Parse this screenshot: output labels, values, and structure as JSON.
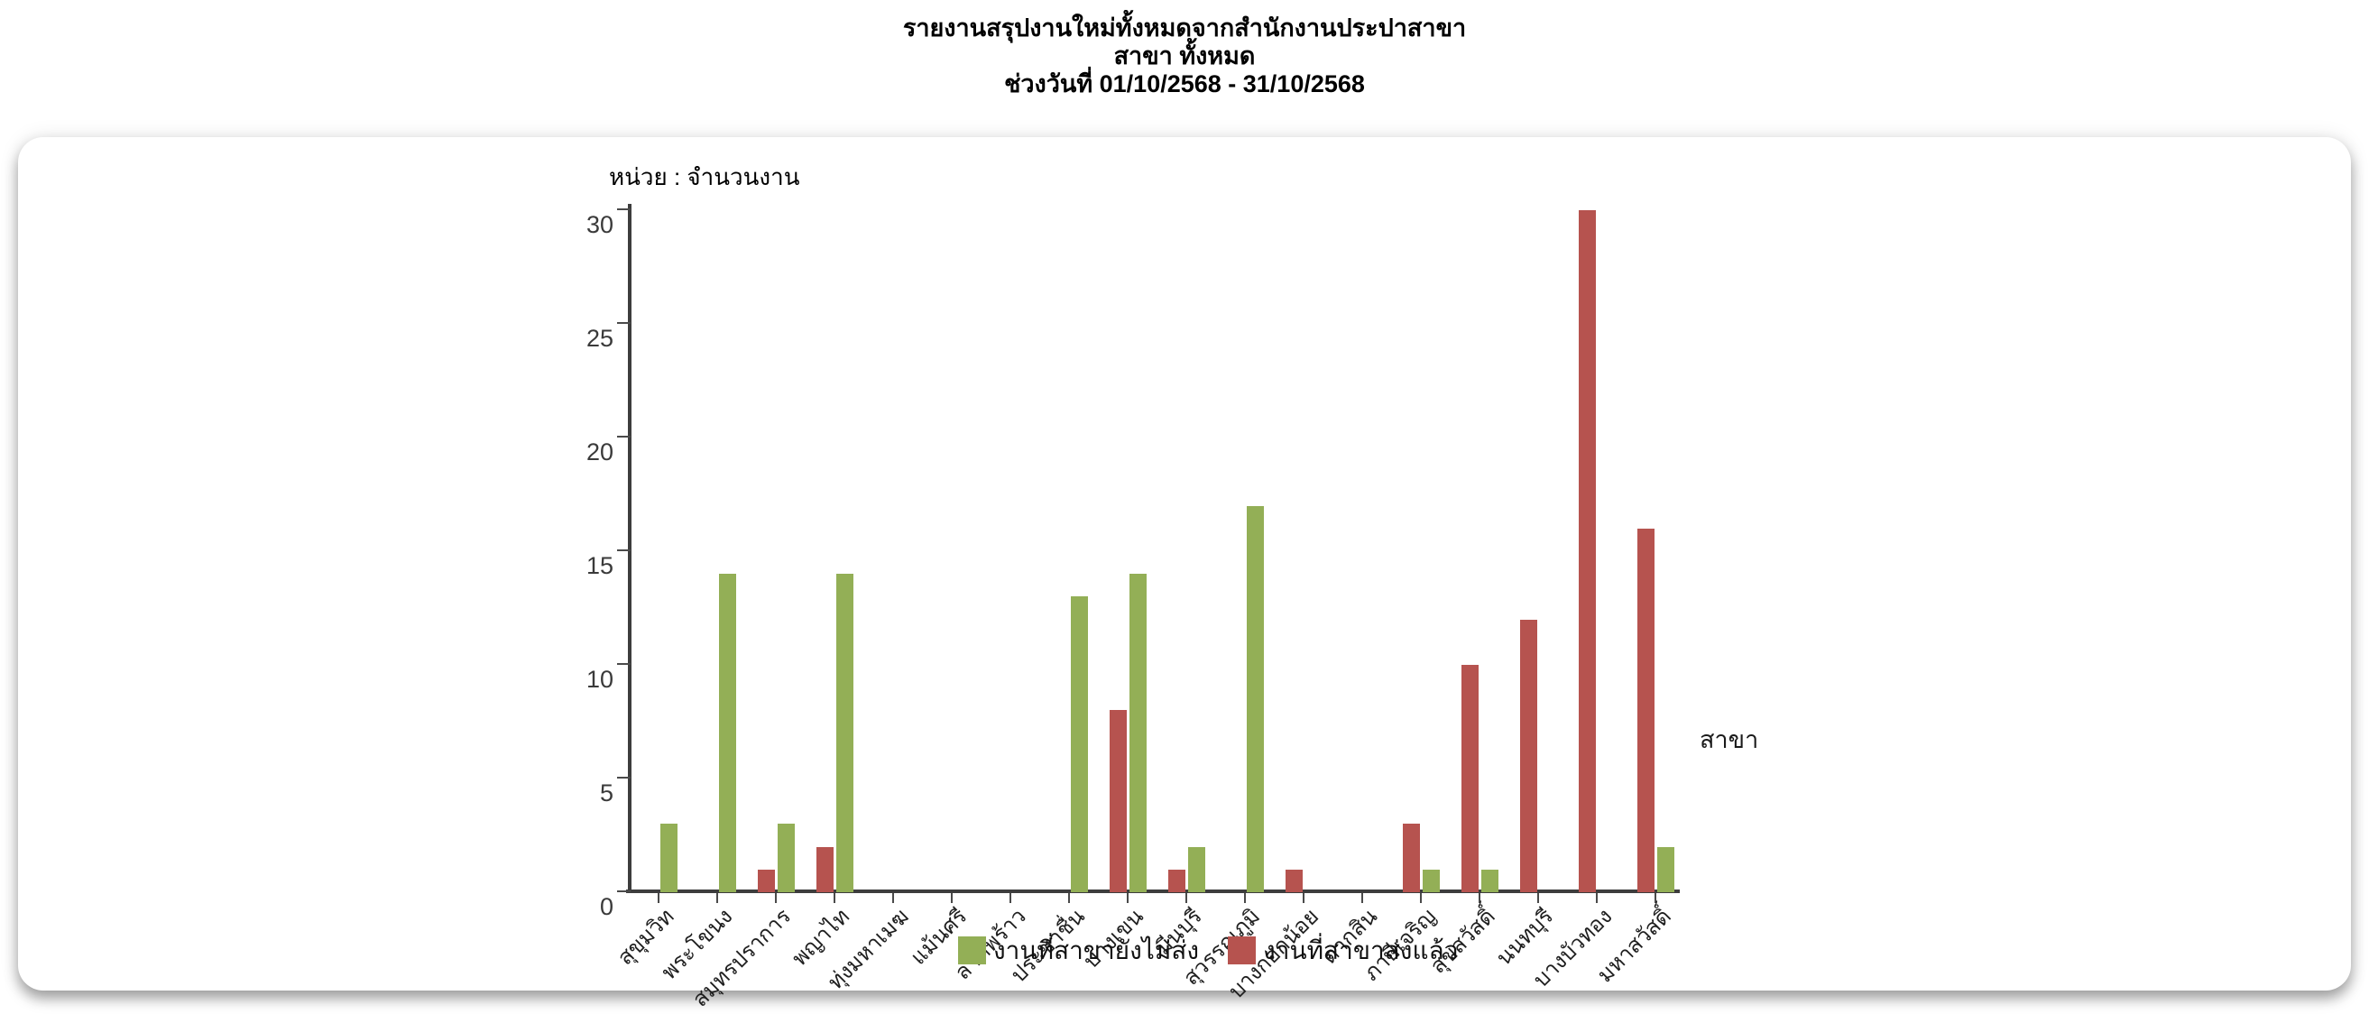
{
  "header": {
    "title_line1": "รายงานสรุปงานใหม่ทั้งหมดจากสำนักงานประปาสาขา",
    "title_line2": "สาขา ทั้งหมด",
    "title_line3": "ช่วงวันที่ 01/10/2568 - 31/10/2568"
  },
  "chart_data": {
    "type": "bar",
    "unit_label": "หน่วย : จำนวนงาน",
    "x_axis_title": "สาขา",
    "categories": [
      "สุขุมวิท",
      "พระโขนง",
      "สมุทรปราการ",
      "พญาไท",
      "ทุ่งมหาเมฆ",
      "แม้นศรี",
      "ลาดพร้าว",
      "ประชาชื่น",
      "บางเขน",
      "มีนบุรี",
      "สุวรรณภูมิ",
      "บางกอกน้อย",
      "ตากสิน",
      "ภาษีเจริญ",
      "สุขสวัสดิ์",
      "นนทบุรี",
      "บางบัวทอง",
      "มหาสวัสดิ์"
    ],
    "series": [
      {
        "name": "งานที่สาขายังไม่ส่ง",
        "color": "#93AF56",
        "values": [
          3,
          14,
          3,
          14,
          0,
          0,
          0,
          13,
          14,
          2,
          17,
          0,
          0,
          1,
          1,
          0,
          0,
          2
        ]
      },
      {
        "name": "งานที่สาขาส่งแล้ว",
        "color": "#B6534F",
        "values": [
          0,
          0,
          1,
          2,
          0,
          0,
          0,
          0,
          8,
          1,
          0,
          1,
          0,
          3,
          10,
          12,
          30,
          16
        ]
      }
    ],
    "ylim": [
      0,
      30
    ],
    "yticks": [
      0,
      5,
      10,
      15,
      20,
      25,
      30
    ],
    "grid": false,
    "legend_position": "bottom-center",
    "layout_note": "for each category the red bar (ส่งแล้ว) is drawn immediately left of the tick and the green bar (ยังไม่ส่ง) immediately right; x labels rotated 45°"
  },
  "colors": {
    "axis": "#3d3d3d",
    "green": "#93AF56",
    "red": "#B6534F",
    "panel_background": "#ffffff"
  }
}
